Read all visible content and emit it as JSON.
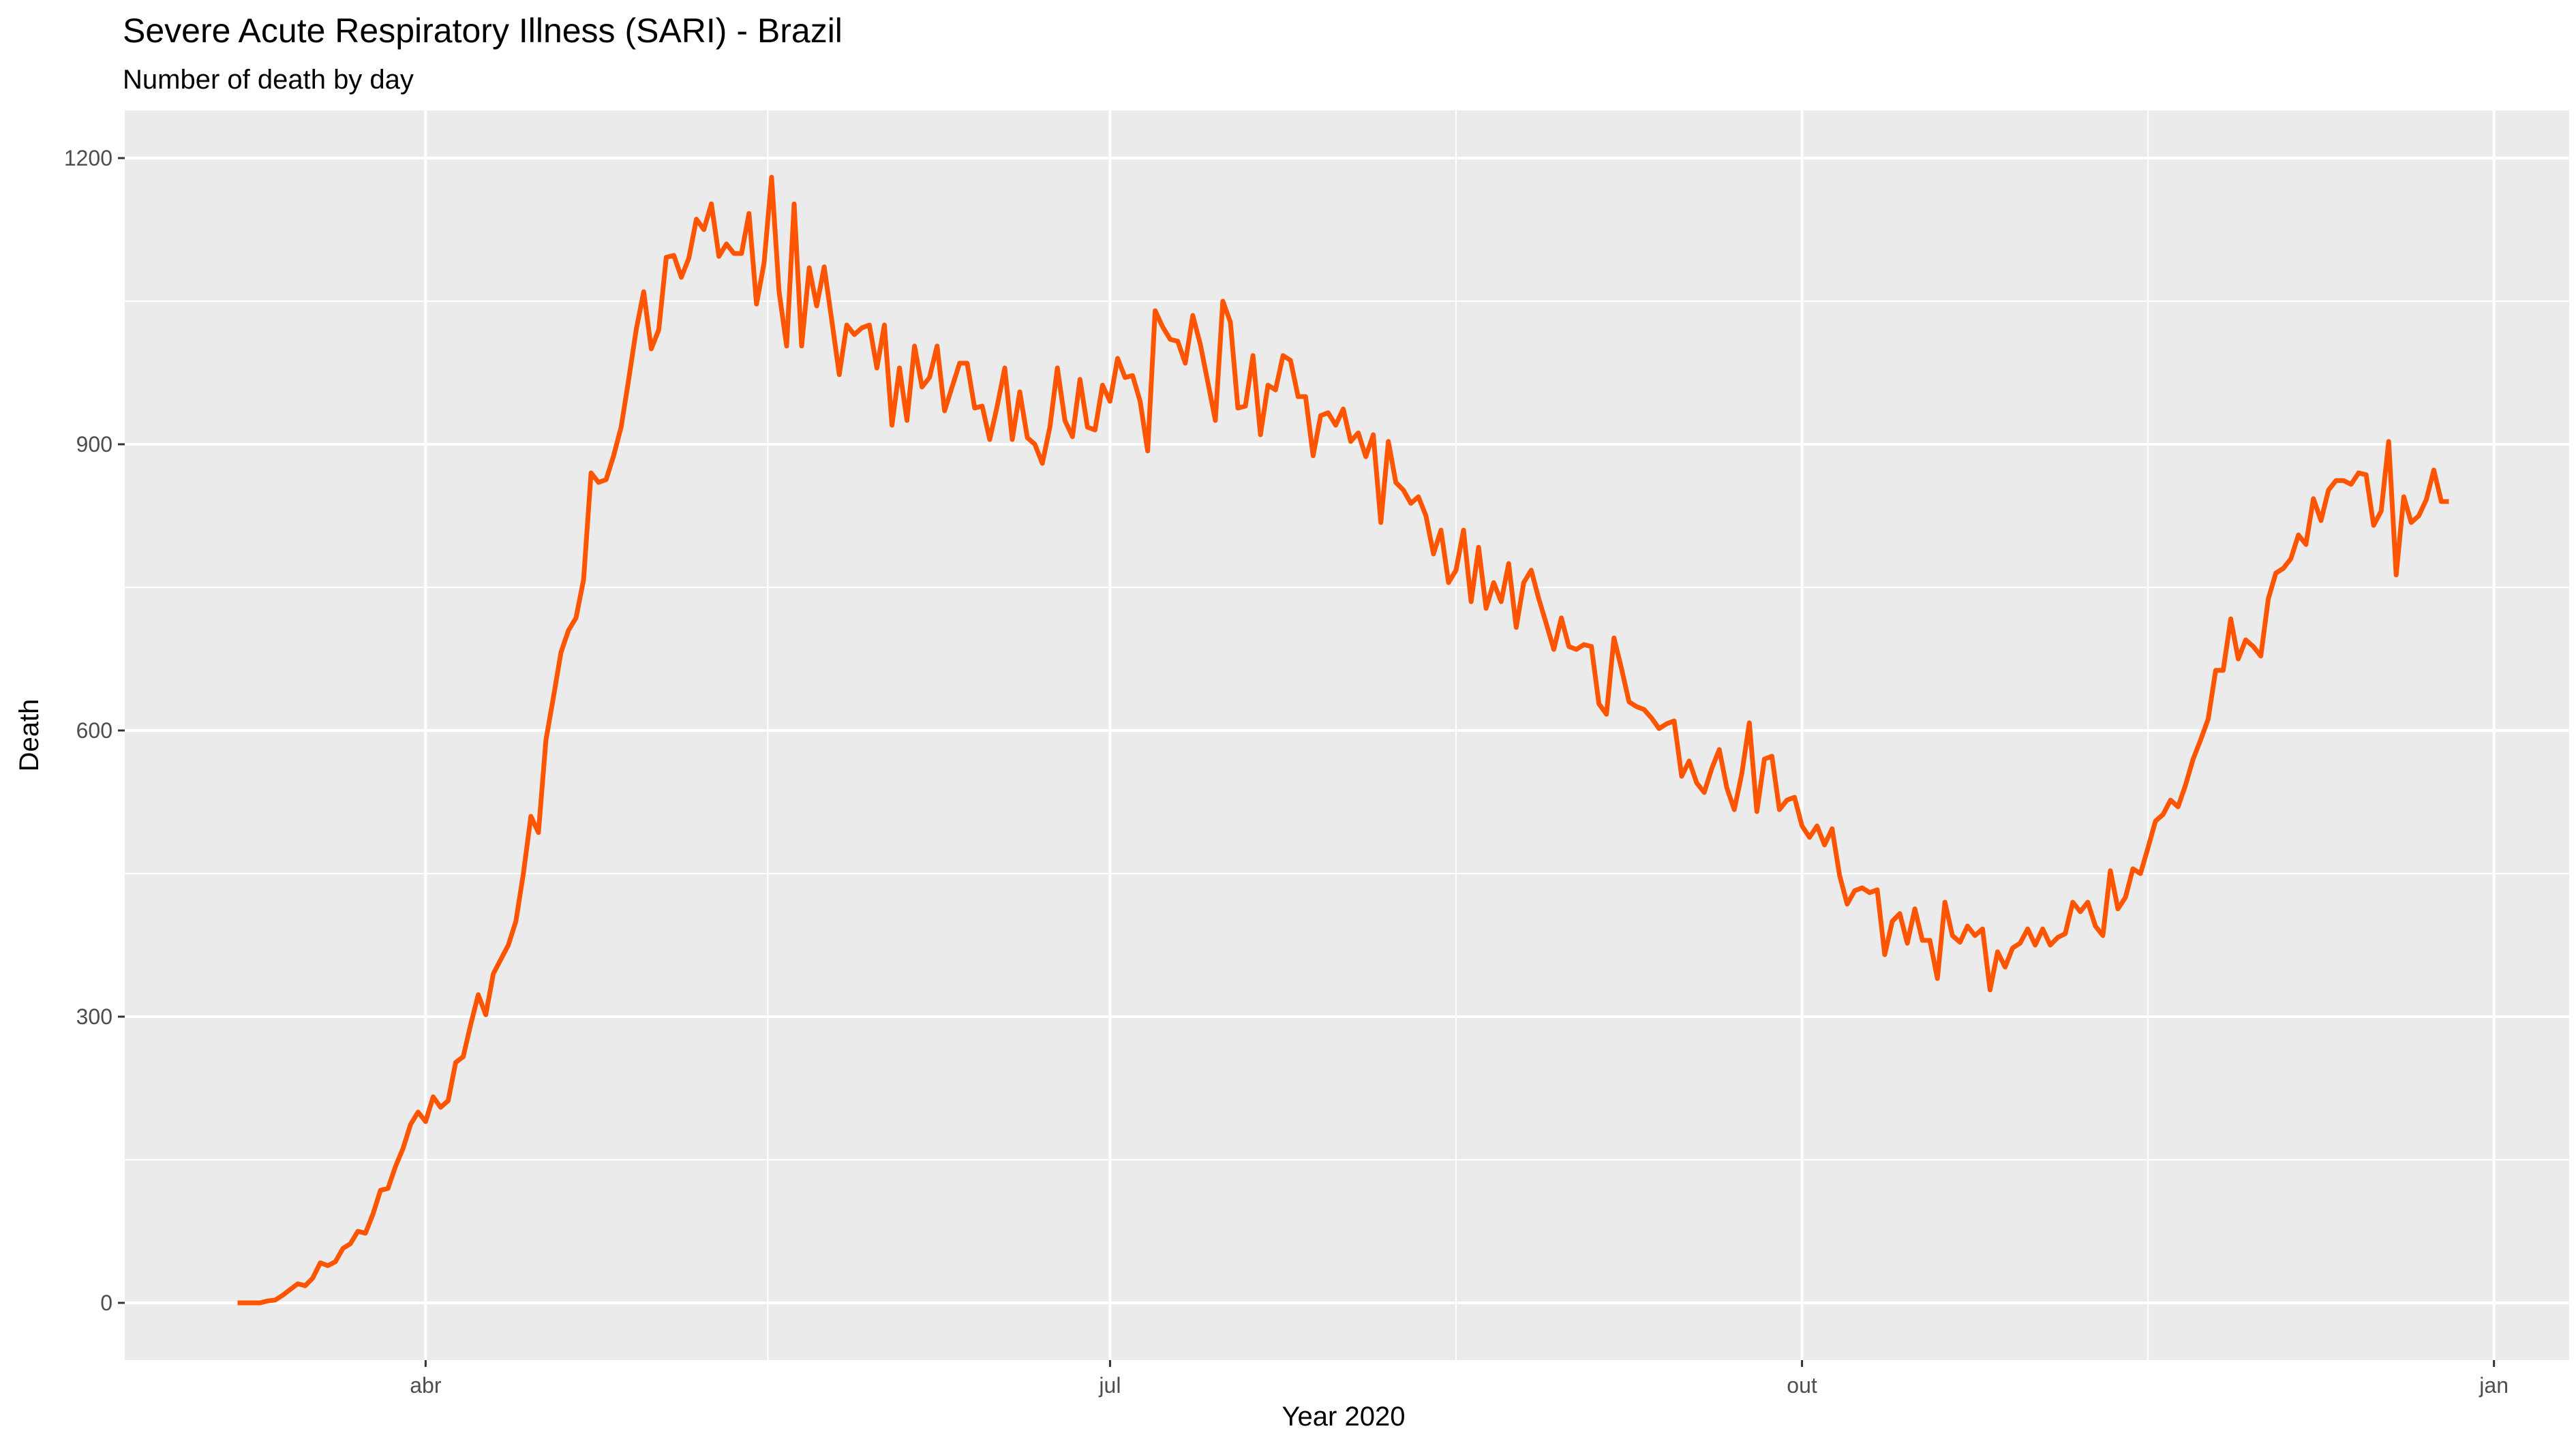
{
  "chart_data": {
    "type": "line",
    "title": "Severe Acute Respiratory Illness (SARI) - Brazil",
    "subtitle": "Number of death by day",
    "xlabel": "Year 2020",
    "ylabel": "Death",
    "xlim": [
      "2020-02-21",
      "2021-01-11"
    ],
    "ylim": [
      -60,
      1250
    ],
    "y_ticks": [
      0,
      300,
      600,
      900,
      1200
    ],
    "x_ticks": [
      {
        "date": "2020-04-01",
        "label": "abr"
      },
      {
        "date": "2020-07-01",
        "label": "jul"
      },
      {
        "date": "2020-10-01",
        "label": "out"
      },
      {
        "date": "2021-01-01",
        "label": "jan"
      }
    ],
    "grid": true,
    "legend": "none",
    "background_color": "#ebebeb",
    "grid_color": "#ffffff",
    "series": [
      {
        "color": "#ff5400",
        "x_start": "2020-03-07",
        "x_step": "1 day",
        "values": [
          0,
          0,
          0,
          0,
          2,
          3,
          8,
          14,
          20,
          18,
          26,
          42,
          39,
          43,
          57,
          62,
          75,
          73,
          93,
          118,
          120,
          143,
          162,
          187,
          200,
          190,
          216,
          205,
          212,
          252,
          258,
          292,
          323,
          302,
          345,
          360,
          375,
          400,
          450,
          510,
          493,
          590,
          635,
          682,
          705,
          718,
          758,
          870,
          860,
          863,
          888,
          918,
          968,
          1020,
          1060,
          1000,
          1020,
          1096,
          1098,
          1075,
          1095,
          1136,
          1125,
          1152,
          1097,
          1110,
          1100,
          1100,
          1142,
          1047,
          1090,
          1180,
          1060,
          1003,
          1152,
          1003,
          1085,
          1045,
          1086,
          1030,
          973,
          1025,
          1015,
          1022,
          1025,
          980,
          1025,
          920,
          980,
          925,
          1003,
          960,
          970,
          1003,
          935,
          960,
          985,
          985,
          938,
          940,
          905,
          940,
          980,
          905,
          955,
          907,
          900,
          880,
          918,
          980,
          925,
          908,
          968,
          918,
          915,
          962,
          945,
          990,
          970,
          972,
          945,
          893,
          1040,
          1023,
          1010,
          1008,
          985,
          1035,
          1005,
          965,
          925,
          1050,
          1028,
          938,
          940,
          993,
          910,
          962,
          957,
          993,
          988,
          950,
          950,
          888,
          930,
          933,
          920,
          937,
          903,
          912,
          887,
          910,
          818,
          903,
          860,
          852,
          838,
          845,
          825,
          785,
          810,
          755,
          768,
          810,
          735,
          792,
          728,
          755,
          735,
          775,
          708,
          755,
          768,
          738,
          712,
          685,
          718,
          688,
          685,
          690,
          688,
          628,
          617,
          697,
          665,
          630,
          625,
          622,
          613,
          602,
          607,
          610,
          552,
          568,
          545,
          535,
          560,
          580,
          540,
          517,
          555,
          608,
          515,
          570,
          573,
          517,
          527,
          530,
          500,
          488,
          500,
          480,
          497,
          448,
          418,
          432,
          435,
          430,
          433,
          365,
          400,
          408,
          377,
          413,
          380,
          380,
          340,
          420,
          385,
          378,
          395,
          385,
          392,
          328,
          368,
          352,
          372,
          377,
          392,
          375,
          392,
          375,
          383,
          387,
          420,
          410,
          420,
          395,
          385,
          453,
          413,
          425,
          455,
          450,
          477,
          505,
          512,
          527,
          520,
          543,
          570,
          590,
          612,
          663,
          663,
          717,
          675,
          695,
          688,
          678,
          738,
          765,
          770,
          780,
          805,
          795,
          843,
          820,
          852,
          862,
          862,
          858,
          870,
          868,
          815,
          830,
          903,
          763,
          845,
          818,
          825,
          842,
          873,
          840,
          840
        ]
      }
    ]
  }
}
